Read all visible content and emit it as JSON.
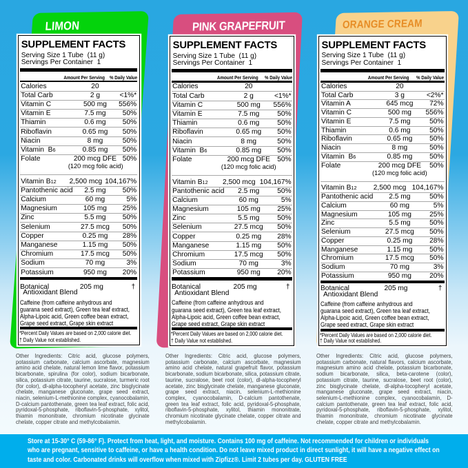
{
  "colors": {
    "background_top": "#29a7e1",
    "background_bottom": "#f3fafd",
    "banner": "#00aeec",
    "limon_card": "#04d30c",
    "pink_card": "#d84e7f",
    "orange_card": "#f8d28c",
    "orange_text": "#e78d26",
    "flavor_text": "#ffffff"
  },
  "banner": {
    "line1": "Store at 15-30° C (59-86° F). Protect from heat, light, and moisture. Contains 100 mg of caffeine. Not recommended for children or individuals",
    "line2": "who are pregnant, sensitive to caffeine, or have a health condition. Do not leave mixed product in direct sunlight, it will have a negative effect on",
    "line3": "taste and color. Carbonated drinks will overflow when mixed with Zipfizz®. Limit 2 tubes per day. GLUTEN FREE"
  },
  "panels": [
    {
      "flavor": "LIMON",
      "facts": {
        "title": "SUPPLEMENT FACTS",
        "serving_size": "Serving Size 1 Tube  (11 g)",
        "servings_per_container": "Servings Per Container  1",
        "col_amount": "Amount Per Serving",
        "col_dv": "% Daily Value",
        "rows": [
          {
            "name": "Calories",
            "amount": "20",
            "dv": ""
          },
          {
            "name": "Total Carb",
            "amount": "2 g",
            "dv": "<1%*"
          },
          {
            "name": "Vitamin C",
            "amount": "500 mg",
            "dv": "556%"
          },
          {
            "name": "Vitamin E",
            "amount": "7.5 mg",
            "dv": "50%"
          },
          {
            "name": "Thiamin",
            "amount": "0.6 mg",
            "dv": "50%"
          },
          {
            "name": "Riboflavin",
            "amount": "0.65 mg",
            "dv": "50%"
          },
          {
            "name": "Niacin",
            "amount": "8 mg",
            "dv": "50%"
          },
          {
            "name": "Vitamin  B",
            "sub": "6",
            "amount": "0.85 mg",
            "dv": "50%"
          },
          {
            "name": "Folate",
            "amount": "200 mcg DFE",
            "note": "(120 mcg folic acid)",
            "dv": "50%"
          },
          {
            "name": "Vitamin B",
            "sub": "12",
            "amount": "2,500 mcg",
            "dv": "104,167%",
            "gap": true
          },
          {
            "name": "Pantothenic acid",
            "amount": "2.5 mg",
            "dv": "50%"
          },
          {
            "name": "Calcium",
            "amount": "60 mg",
            "dv": "5%"
          },
          {
            "name": "Magnesium",
            "amount": "105 mg",
            "dv": "25%"
          },
          {
            "name": "Zinc",
            "amount": "5.5 mg",
            "dv": "50%"
          },
          {
            "name": "Selenium",
            "amount": "27.5 mcg",
            "dv": "50%"
          },
          {
            "name": "Copper",
            "amount": "0.25 mg",
            "dv": "28%"
          },
          {
            "name": "Manganese",
            "amount": "1.15 mg",
            "dv": "50%"
          },
          {
            "name": "Chromium",
            "amount": "17.5 mcg",
            "dv": "50%"
          },
          {
            "name": "Sodium",
            "amount": "70 mg",
            "dv": "3%"
          },
          {
            "name": "Potassium",
            "amount": "950 mg",
            "dv": "20%"
          }
        ],
        "blend_name_line1": "Botanical",
        "blend_name_line2": "Antioxidant Blend",
        "blend_amount": "205 mg",
        "blend_dv": "†",
        "blend_description_lines": [
          "Caffeine (from caffeine anhydrous and",
          "guarana seed extract), Green tea leaf extract,",
          "Alpha-Lipoic acid, Green coffee bean extract,",
          "Grape seed extract, Grape skin extract"
        ],
        "footnote1": "*Percent Daily Values are based on 2,000 calorie diet.",
        "footnote2": "† Daily Value not established."
      },
      "other_ingredients": "Other Ingredients: Citric acid, glucose polymers, potassium carbonate, calcium ascorbate, magnesium amino acid chelate, natural lemon lime flavor, potassium bicarbonate, spirulina (for color), sodium bicarbonate, silica, potassium citrate, taurine, sucralose, turmeric root (for color), dl-alpha-tocopheryl acetate, zinc bisglycinate chelate, manganese gluconate, grape seed extract, niacin, selenium-L-methionine complex, cyanocobalamin, D-calcium pantothenate, green tea leaf extract, folic acid, pyridoxal-5-phosphate, riboflavin-5-phosphate, xylitol, thiamin mononitrate, chromium nicotinate glycinate chelate, copper citrate and methylcobalamin."
    },
    {
      "flavor": "PINK GRAPEFRUIT",
      "facts": {
        "title": "SUPPLEMENT FACTS",
        "serving_size": "Serving Size 1 Tube  (11 g)",
        "servings_per_container": "Servings Per Container  1",
        "col_amount": "Amount Per Serving",
        "col_dv": "% Daily Value",
        "rows": [
          {
            "name": "Calories",
            "amount": "20",
            "dv": ""
          },
          {
            "name": "Total Carb",
            "amount": "2 g",
            "dv": "<1%*"
          },
          {
            "name": "Vitamin C",
            "amount": "500 mg",
            "dv": "556%"
          },
          {
            "name": "Vitamin E",
            "amount": "7.5 mg",
            "dv": "50%"
          },
          {
            "name": "Thiamin",
            "amount": "0.6 mg",
            "dv": "50%"
          },
          {
            "name": "Riboflavin",
            "amount": "0.65 mg",
            "dv": "50%"
          },
          {
            "name": "Niacin",
            "amount": "8 mg",
            "dv": "50%"
          },
          {
            "name": "Vitamin  B",
            "sub": "6",
            "amount": "0.85 mg",
            "dv": "50%"
          },
          {
            "name": "Folate",
            "amount": "200 mcg DFE",
            "note": "(120 mcg folic acid)",
            "dv": "50%"
          },
          {
            "name": "Vitamin B",
            "sub": "12",
            "amount": "2,500 mcg",
            "dv": "104,167%",
            "gap": true
          },
          {
            "name": "Pantothenic acid",
            "amount": "2.5 mg",
            "dv": "50%"
          },
          {
            "name": "Calcium",
            "amount": "60 mg",
            "dv": "5%"
          },
          {
            "name": "Magnesium",
            "amount": "105 mg",
            "dv": "25%"
          },
          {
            "name": "Zinc",
            "amount": "5.5 mg",
            "dv": "50%"
          },
          {
            "name": "Selenium",
            "amount": "27.5 mcg",
            "dv": "50%"
          },
          {
            "name": "Copper",
            "amount": "0.25 mg",
            "dv": "28%"
          },
          {
            "name": "Manganese",
            "amount": "1.15 mg",
            "dv": "50%"
          },
          {
            "name": "Chromium",
            "amount": "17.5 mcg",
            "dv": "50%"
          },
          {
            "name": "Sodium",
            "amount": "70 mg",
            "dv": "3%"
          },
          {
            "name": "Potassium",
            "amount": "950 mg",
            "dv": "20%"
          }
        ],
        "blend_name_line1": "Botanical",
        "blend_name_line2": "Antioxidant Blend",
        "blend_amount": "205 mg",
        "blend_dv": "†",
        "blend_description_lines": [
          "Caffeine (from caffeine anhydrous and",
          "guarana seed extract), Green tea leaf extract,",
          "Alpha-Lipoic acid, Green coffee bean extract,",
          "Grape seed extract, Grape skin extract"
        ],
        "footnote1": "*Percent Daily Values are based on 2,000 calorie diet.",
        "footnote2": "† Daily Value not established."
      },
      "other_ingredients": "Other Ingredients: Citric acid, glucose polymers, potassium carbonate, calcium ascorbate, magnesium amino acid chelate, natural grapefruit flavor, potassium bicarbonate, sodium bicarbonate, silica, potassium citrate, taurine, sucralose, beet root (color), dl-alpha-tocopheryl acetate, zinc bisglycinate chelate, manganese gluconate, grape seed extract, niacin, selenium-L-methionine complex, cyanocobalamin, D-calcium pantothenate, green tea leaf extract, folic acid, pyridoxal-5-phosphate, riboflavin-5-phosphate, xylitol, thiamin mononitrate, chromium nicotinate glycinate chelate, copper citrate and methylcobalamin."
    },
    {
      "flavor": "ORANGE CREAM",
      "facts": {
        "title": "SUPPLEMENT FACTS",
        "serving_size": "Serving Size 1 Tube  (11 g)",
        "servings_per_container": "Servings Per Container  1",
        "col_amount": "Amount Per Serving",
        "col_dv": "% Daily Value",
        "rows": [
          {
            "name": "Calories",
            "amount": "20",
            "dv": ""
          },
          {
            "name": "Total Carb",
            "amount": "3 g",
            "dv": "<2%*"
          },
          {
            "name": "Vitamin A",
            "amount": "645 mcg",
            "dv": "72%"
          },
          {
            "name": "Vitamin C",
            "amount": "500 mg",
            "dv": "556%"
          },
          {
            "name": "Vitamin E",
            "amount": "7.5 mg",
            "dv": "50%"
          },
          {
            "name": "Thiamin",
            "amount": "0.6 mg",
            "dv": "50%"
          },
          {
            "name": "Riboflavin",
            "amount": "0.65 mg",
            "dv": "50%"
          },
          {
            "name": "Niacin",
            "amount": "8 mg",
            "dv": "50%"
          },
          {
            "name": "Vitamin  B",
            "sub": "6",
            "amount": "0.85 mg",
            "dv": "50%"
          },
          {
            "name": "Folate",
            "amount": "200 mcg DFE",
            "note": "(120 mcg folic acid)",
            "dv": "50%"
          },
          {
            "name": "Vitamin B",
            "sub": "12",
            "amount": "2,500 mcg",
            "dv": "104,167%",
            "gap": true
          },
          {
            "name": "Pantothenic acid",
            "amount": "2.5 mg",
            "dv": "50%"
          },
          {
            "name": "Calcium",
            "amount": "60 mg",
            "dv": "5%"
          },
          {
            "name": "Magnesium",
            "amount": "105 mg",
            "dv": "25%"
          },
          {
            "name": "Zinc",
            "amount": "5.5 mg",
            "dv": "50%"
          },
          {
            "name": "Selenium",
            "amount": "27.5 mcg",
            "dv": "50%"
          },
          {
            "name": "Copper",
            "amount": "0.25 mg",
            "dv": "28%"
          },
          {
            "name": "Manganese",
            "amount": "1.15 mg",
            "dv": "50%"
          },
          {
            "name": "Chromium",
            "amount": "17.5 mcg",
            "dv": "50%"
          },
          {
            "name": "Sodium",
            "amount": "70 mg",
            "dv": "3%"
          },
          {
            "name": "Potassium",
            "amount": "950 mg",
            "dv": "20%"
          }
        ],
        "blend_name_line1": "Botanical",
        "blend_name_line2": "Antioxidant Blend",
        "blend_amount": "205 mg",
        "blend_dv": "†",
        "blend_description_lines": [
          "Caffeine (from caffeine anhydrous and",
          "guarana seed extract), Green tea leaf extract,",
          "Alpha-Lipoic acid, Green coffee bean extract,",
          "Grape seed extract, Grape skin extract"
        ],
        "footnote1": "*Percent Daily Values are based on 2,000 calorie diet.",
        "footnote2": "† Daily Value not established."
      },
      "other_ingredients": "Other Ingredients: Citric acid, glucose polymers, potassium carbonate, natural flavors, calcium ascorbate, magnesium amino acid chelate, potassium bicarbonate, sodium bicarbonate, silica, beta-carotene (color), potassium citrate, taurine, sucralose, beet root (color), zinc bisglycinate chelate, dl-alpha-tocopheryl acetate, manganese gluconate, grape seed extract, niacin, selenium-L-methionine complex, cyanocobalamin, D-calcium pantothenate, green tea leaf extract, folic acid, pyridoxal-5-phosphate, riboflavin-5-phosphate, xylitol, thiamin mononitrate, chromium nicotinate glycinate chelate, copper citrate and methylcobalamin."
    }
  ]
}
